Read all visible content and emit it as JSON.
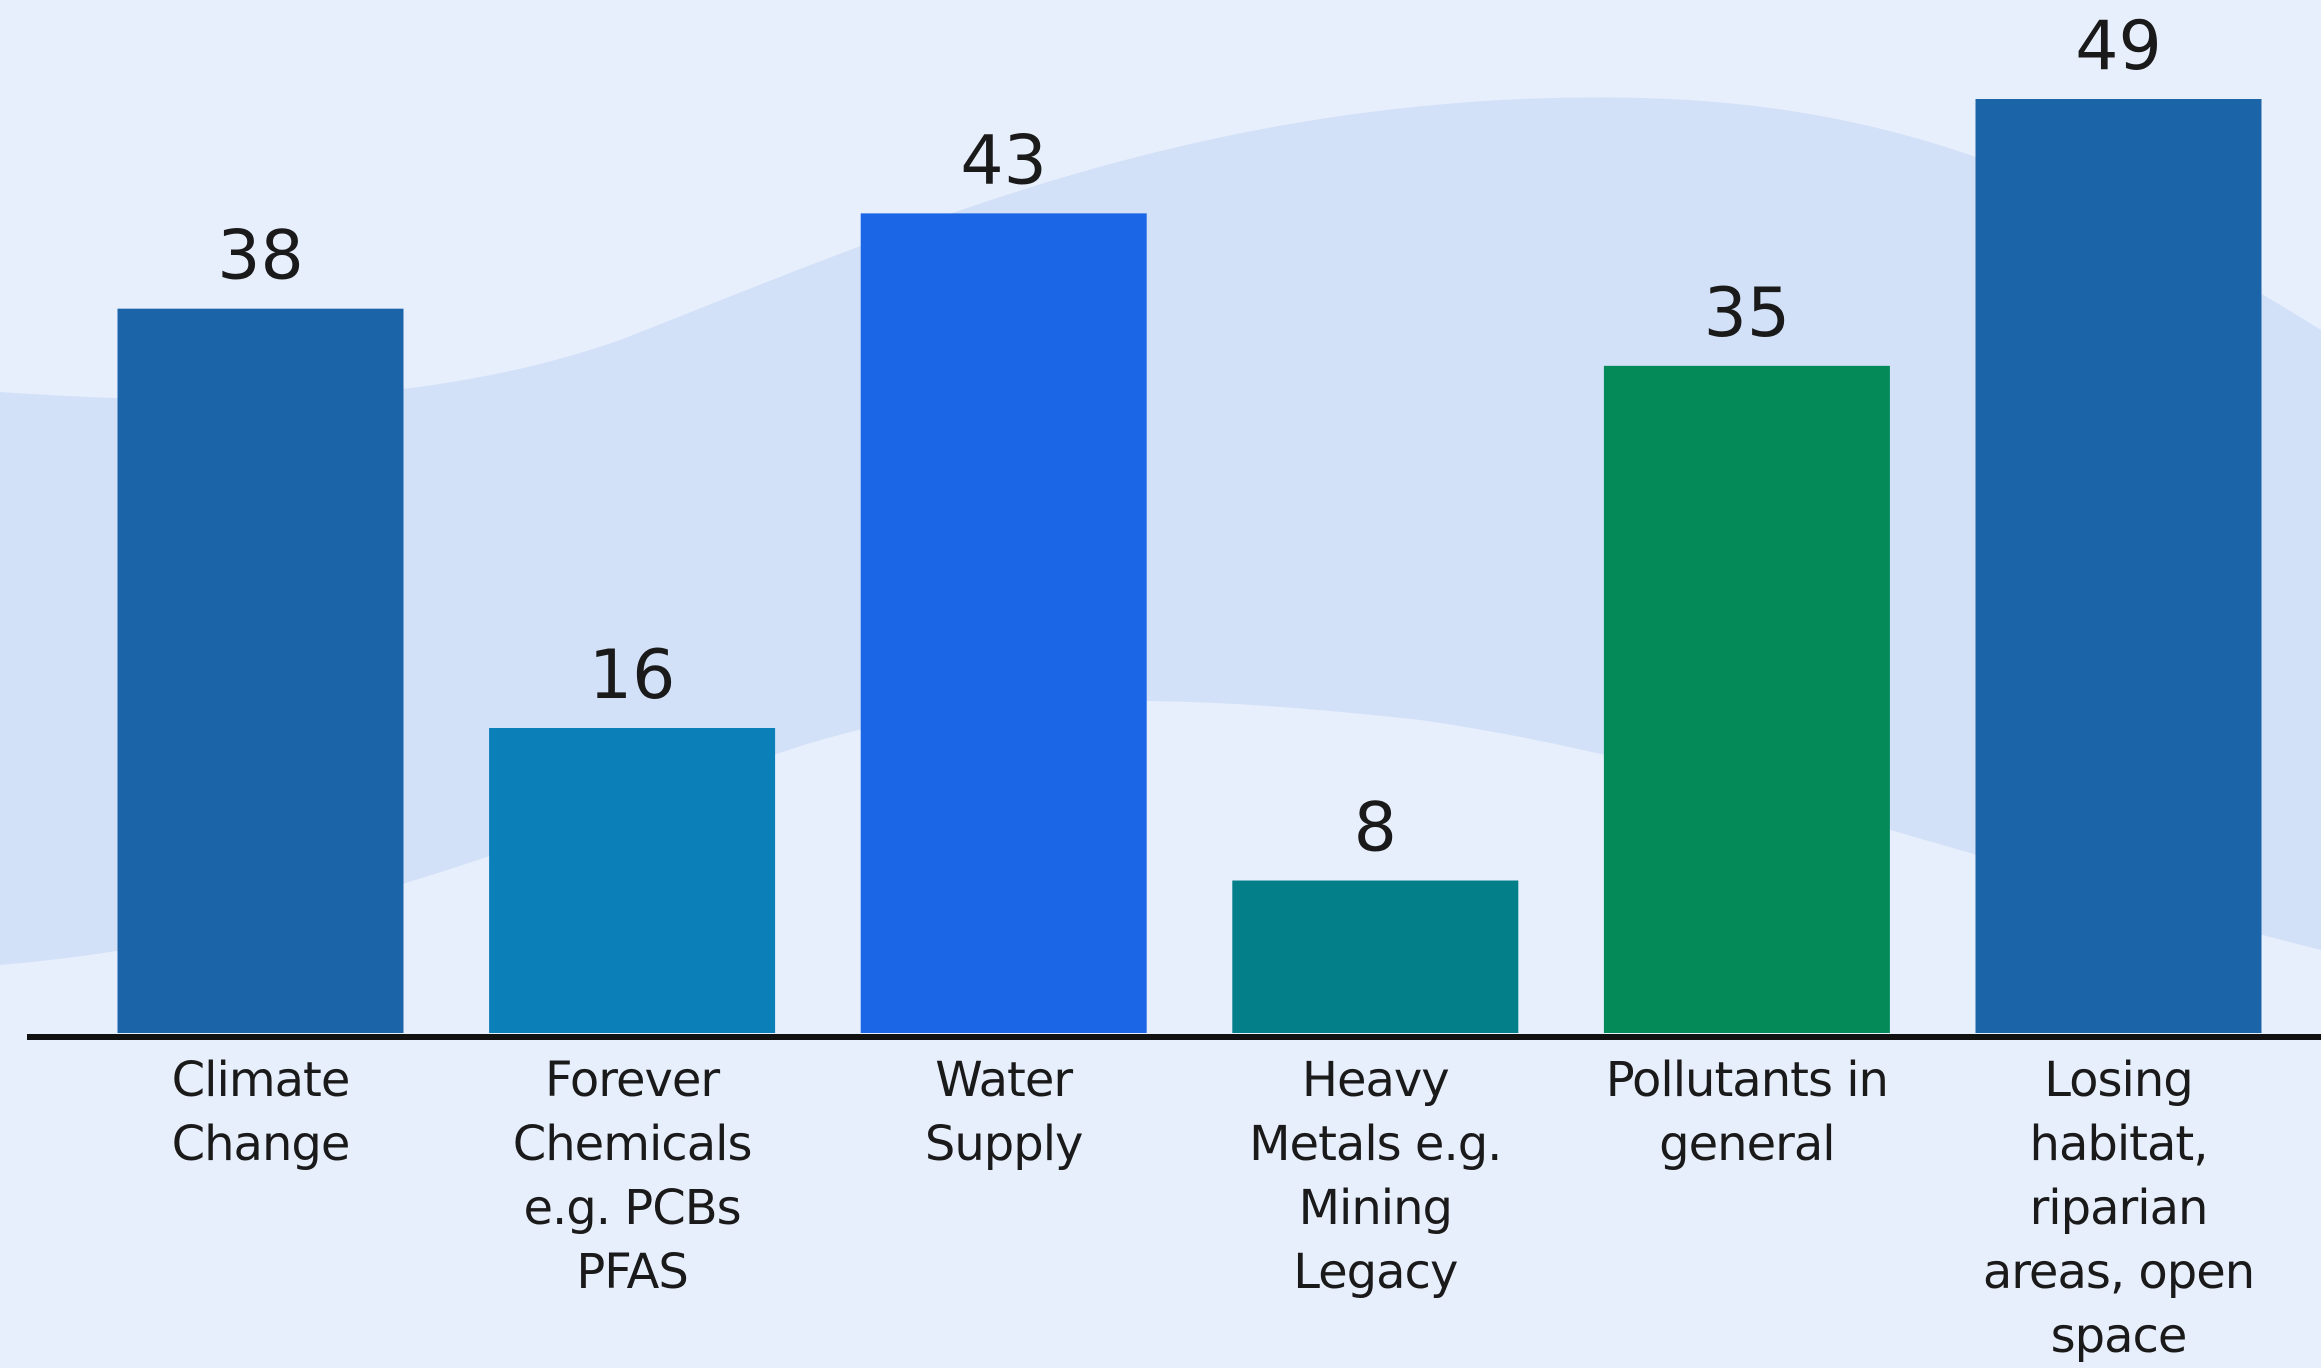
{
  "chart_data": {
    "type": "bar",
    "categories": [
      "Climate Change",
      "Forever Chemicals e.g. PCBs PFAS",
      "Water Supply",
      "Heavy Metals e.g. Mining Legacy",
      "Pollutants in general",
      "Losing habitat, riparian areas, open space"
    ],
    "values": [
      38,
      16,
      43,
      8,
      35,
      49
    ],
    "colors": [
      "#1c64a8",
      "#0a7fb8",
      "#1b66e6",
      "#037f8a",
      "#038a58",
      "#1c64a8"
    ]
  }
}
